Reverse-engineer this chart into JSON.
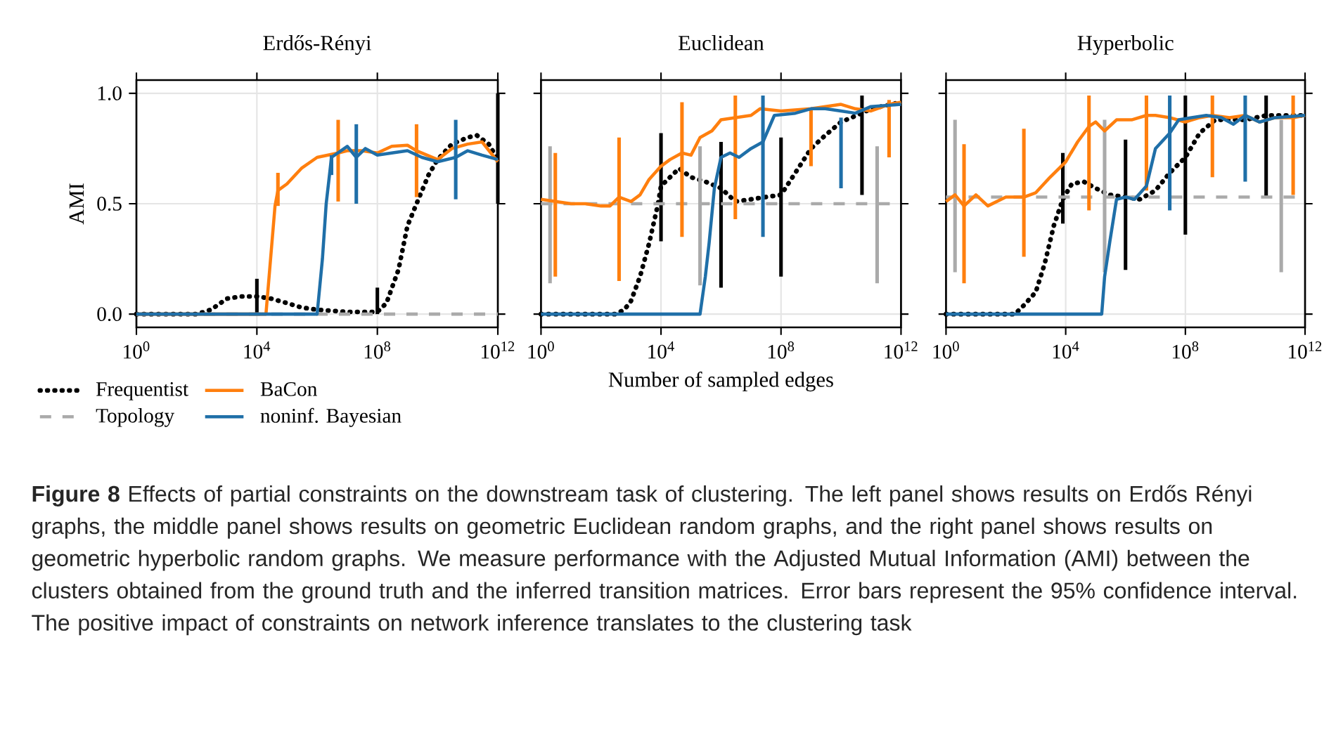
{
  "chart_data": [
    {
      "type": "line",
      "title": "Erdős-Rényi",
      "ylabel": "AMI",
      "log": "x",
      "grid": true,
      "legend": "bottom left",
      "xlim": [
        1,
        1000000000000.0
      ],
      "ylim": [
        -0.06,
        1.06
      ],
      "xticks": [
        {
          "value": 1,
          "label": "10$^{0}$"
        },
        {
          "value": 10000.0,
          "label": "10$^{4}$"
        },
        {
          "value": 100000000.0,
          "label": "10$^{8}$"
        },
        {
          "value": 1000000000000.0,
          "label": "10$^{12}$"
        }
      ],
      "yticks": [
        {
          "value": 0,
          "label": "0.0"
        },
        {
          "value": 0.5,
          "label": "0.5"
        },
        {
          "value": 1,
          "label": "1.0"
        }
      ],
      "series": [
        {
          "name": "Frequentist",
          "color": "#000000",
          "line_style": "dotted",
          "x": [
            1,
            100,
            300,
            1000.0,
            3000.0,
            10000.0,
            30000.0,
            100000.0,
            300000.0,
            1000000.0,
            10000000.0,
            100000000.0,
            200000000.0,
            500000000.0,
            1000000000.0,
            2000000000.0,
            5000000000.0,
            10000000000.0,
            30000000000.0,
            100000000000.0,
            200000000000.0,
            500000000000.0,
            1000000000000.0
          ],
          "values": [
            0,
            0,
            0.02,
            0.07,
            0.08,
            0.08,
            0.07,
            0.05,
            0.03,
            0.02,
            0.01,
            0.01,
            0.05,
            0.2,
            0.4,
            0.5,
            0.63,
            0.7,
            0.77,
            0.8,
            0.81,
            0.77,
            0.7
          ],
          "errors": [
            null,
            null,
            null,
            null,
            null,
            [
              0,
              0.16
            ],
            null,
            null,
            null,
            null,
            null,
            [
              0,
              0.12
            ],
            null,
            null,
            null,
            null,
            null,
            null,
            null,
            null,
            null,
            null,
            [
              0.5,
              1.0
            ]
          ]
        },
        {
          "name": "Topology",
          "color": "#aaaaaa",
          "line_style": "dashed",
          "x": [
            1,
            10000.0,
            100000000.0,
            1000000000000.0
          ],
          "values": [
            0,
            0,
            0,
            0
          ]
        },
        {
          "name": "BaCon",
          "color": "#ff7f0e",
          "line_style": "solid",
          "x": [
            1,
            1000.0,
            10000.0,
            20000.0,
            40000.0,
            50000.0,
            100000.0,
            300000.0,
            1000000.0,
            5000000.0,
            10000000.0,
            30000000.0,
            100000000.0,
            300000000.0,
            1000000000.0,
            2000000000.0,
            10000000000.0,
            30000000000.0,
            100000000000.0,
            300000000000.0,
            1000000000000.0
          ],
          "values": [
            0,
            0,
            0,
            0,
            0.49,
            0.56,
            0.59,
            0.66,
            0.71,
            0.73,
            0.74,
            0.74,
            0.73,
            0.76,
            0.765,
            0.74,
            0.7,
            0.75,
            0.77,
            0.78,
            0.69
          ],
          "errors": [
            null,
            null,
            null,
            null,
            null,
            [
              0.49,
              0.64
            ],
            null,
            null,
            null,
            [
              0.51,
              0.88
            ],
            null,
            null,
            null,
            null,
            null,
            [
              0.53,
              0.86
            ],
            null,
            null,
            null,
            null,
            null
          ]
        },
        {
          "name": "noninf. Bayesian",
          "color": "#1f6fa8",
          "line_style": "solid",
          "x": [
            1,
            1000.0,
            100000.0,
            1000000.0,
            1500000.0,
            2000000.0,
            3000000.0,
            10000000.0,
            20000000.0,
            40000000.0,
            100000000.0,
            300000000.0,
            1000000000.0,
            3000000000.0,
            10000000000.0,
            40000000000.0,
            100000000000.0,
            300000000000.0,
            1000000000000.0
          ],
          "values": [
            0,
            0,
            0,
            0,
            0.25,
            0.5,
            0.71,
            0.76,
            0.71,
            0.75,
            0.72,
            0.73,
            0.74,
            0.71,
            0.69,
            0.71,
            0.74,
            0.72,
            0.7
          ],
          "errors": [
            null,
            null,
            null,
            null,
            null,
            null,
            [
              0.63,
              0.72
            ],
            null,
            [
              0.5,
              0.86
            ],
            null,
            null,
            null,
            null,
            null,
            null,
            [
              0.52,
              0.88
            ],
            null,
            null,
            null
          ]
        }
      ],
      "annotations": [
        "**Figure 8** Effects of partial constraints on the downstream task of clustering. The left panel shows results on Erdős Rényi graphs, the middle panel shows results on geometric Euclidean random graphs, and the right panel shows results on geometric hyperbolic random graphs. We measure performance with the Adjusted Mutual Information (AMI) between the clusters obtained from the ground truth and the inferred transition matrices. Error bars represent the 95% confidence interval. The positive impact of constraints on network inference translates to the clustering task"
      ]
    },
    {
      "type": "line",
      "title": "Euclidean",
      "xlabel": "Number of sampled edges",
      "log": "x",
      "grid": true,
      "tick_labels": "x",
      "xlim": [
        1,
        1000000000000.0
      ],
      "ylim": [
        -0.06,
        1.06
      ],
      "xticks": [
        {
          "value": 1,
          "label": "10$^{0}$"
        },
        {
          "value": 10000.0,
          "label": "10$^{4}$"
        },
        {
          "value": 100000000.0,
          "label": "10$^{8}$"
        },
        {
          "value": 1000000000000.0,
          "label": "10$^{12}$"
        }
      ],
      "yticks": [
        0,
        0.5,
        1
      ],
      "series": [
        {
          "color": "#000000",
          "line_style": "dotted",
          "x": [
            1,
            300,
            600,
            1000.0,
            2000.0,
            4000.0,
            8000.0,
            10000.0,
            20000.0,
            40000.0,
            100000.0,
            300000.0,
            1000000.0,
            3000000.0,
            10000000.0,
            30000000.0,
            100000000.0,
            300000000.0,
            1000000000.0,
            3000000000.0,
            10000000000.0,
            50000000000.0,
            100000000000.0,
            1000000000000.0
          ],
          "values": [
            0,
            0,
            0.02,
            0.06,
            0.17,
            0.32,
            0.5,
            0.58,
            0.62,
            0.66,
            0.62,
            0.6,
            0.57,
            0.51,
            0.52,
            0.53,
            0.54,
            0.64,
            0.75,
            0.81,
            0.87,
            0.91,
            0.93,
            0.96
          ],
          "errors": [
            null,
            null,
            null,
            null,
            null,
            null,
            null,
            [
              0.33,
              0.82
            ],
            null,
            null,
            null,
            null,
            [
              0.12,
              0.78
            ],
            null,
            null,
            null,
            [
              0.17,
              0.8
            ],
            null,
            null,
            null,
            null,
            [
              0.54,
              0.99
            ],
            null,
            null
          ]
        },
        {
          "color": "#aaaaaa",
          "line_style": "dashed",
          "x": [
            1,
            2,
            200000.0,
            160000000000.0,
            1000000000000.0
          ],
          "values": [
            0.5,
            0.5,
            0.5,
            0.5,
            0.5
          ],
          "errors": [
            null,
            [
              0.14,
              0.76
            ],
            [
              0.13,
              0.76
            ],
            [
              0.14,
              0.76
            ],
            null
          ]
        },
        {
          "color": "#ff7f0e",
          "line_style": "solid",
          "x": [
            1,
            3,
            10,
            30,
            100,
            200,
            400,
            1000.0,
            2000.0,
            4000.0,
            10000.0,
            20000.0,
            50000.0,
            100000.0,
            200000.0,
            500000.0,
            1000000.0,
            3000000.0,
            10000000.0,
            20000000.0,
            100000000.0,
            1000000000.0,
            10000000000.0,
            30000000000.0,
            100000000000.0,
            400000000000.0,
            1000000000000.0
          ],
          "values": [
            0.52,
            0.51,
            0.5,
            0.5,
            0.49,
            0.49,
            0.53,
            0.51,
            0.54,
            0.61,
            0.67,
            0.7,
            0.73,
            0.72,
            0.8,
            0.83,
            0.88,
            0.89,
            0.9,
            0.93,
            0.92,
            0.93,
            0.95,
            0.93,
            0.92,
            0.95,
            0.96
          ],
          "errors": [
            null,
            [
              0.17,
              0.73
            ],
            null,
            null,
            null,
            null,
            [
              0.15,
              0.8
            ],
            null,
            null,
            null,
            null,
            null,
            [
              0.35,
              0.96
            ],
            null,
            null,
            null,
            null,
            [
              0.43,
              0.99
            ],
            null,
            null,
            null,
            [
              0.67,
              0.93
            ],
            null,
            null,
            null,
            [
              0.71,
              0.97
            ],
            null
          ]
        },
        {
          "color": "#1f6fa8",
          "line_style": "solid",
          "x": [
            1,
            1000.0,
            100000.0,
            200000.0,
            300000.0,
            400000.0,
            600000.0,
            1000000.0,
            2000000.0,
            4000000.0,
            10000000.0,
            25000000.0,
            60000000.0,
            300000000.0,
            1000000000.0,
            3000000000.0,
            10000000000.0,
            30000000000.0,
            100000000000.0,
            1000000000000.0
          ],
          "values": [
            0,
            0,
            0,
            0,
            0.17,
            0.32,
            0.57,
            0.71,
            0.73,
            0.71,
            0.75,
            0.78,
            0.9,
            0.91,
            0.93,
            0.93,
            0.92,
            0.91,
            0.94,
            0.95
          ],
          "errors": [
            null,
            null,
            null,
            null,
            null,
            null,
            null,
            null,
            null,
            null,
            null,
            [
              0.35,
              0.99
            ],
            null,
            null,
            null,
            null,
            [
              0.57,
              0.89
            ],
            null,
            null,
            null
          ]
        }
      ]
    },
    {
      "type": "line",
      "title": "Hyperbolic",
      "log": "x",
      "grid": true,
      "tick_labels": "x",
      "xlim": [
        1,
        1000000000000.0
      ],
      "ylim": [
        -0.06,
        1.06
      ],
      "xticks": [
        {
          "value": 1,
          "label": "10$^{0}$"
        },
        {
          "value": 10000.0,
          "label": "10$^{4}$"
        },
        {
          "value": 100000000.0,
          "label": "10$^{8}$"
        },
        {
          "value": 1000000000000.0,
          "label": "10$^{12}$"
        }
      ],
      "yticks": [
        0,
        0.5,
        1
      ],
      "series": [
        {
          "color": "#000000",
          "line_style": "dotted",
          "x": [
            1,
            200,
            400,
            1000.0,
            2000.0,
            4000.0,
            8000.0,
            16000.0,
            40000.0,
            100000.0,
            300000.0,
            1000000.0,
            3000000.0,
            10000000.0,
            30000000.0,
            100000000.0,
            300000000.0,
            1000000000.0,
            10000000000.0,
            50000000000.0,
            1000000000000.0
          ],
          "values": [
            0,
            0,
            0.04,
            0.1,
            0.23,
            0.4,
            0.52,
            0.59,
            0.6,
            0.57,
            0.54,
            0.53,
            0.52,
            0.56,
            0.64,
            0.71,
            0.82,
            0.88,
            0.88,
            0.9,
            0.9
          ],
          "errors": [
            null,
            null,
            null,
            null,
            null,
            null,
            [
              0.41,
              0.73
            ],
            null,
            null,
            null,
            null,
            [
              0.2,
              0.79
            ],
            null,
            null,
            null,
            [
              0.36,
              0.99
            ],
            null,
            null,
            null,
            [
              0.53,
              0.99
            ],
            null
          ]
        },
        {
          "color": "#aaaaaa",
          "line_style": "dashed",
          "x": [
            1,
            2,
            200000.0,
            160000000000.0,
            1000000000000.0
          ],
          "values": [
            0.53,
            0.53,
            0.53,
            0.53,
            0.53
          ],
          "errors": [
            null,
            [
              0.19,
              0.88
            ],
            [
              0.19,
              0.88
            ],
            [
              0.19,
              0.88
            ],
            null
          ]
        },
        {
          "color": "#ff7f0e",
          "line_style": "solid",
          "x": [
            1,
            2,
            4,
            10,
            25,
            100,
            400,
            1000.0,
            3000.0,
            10000.0,
            25000.0,
            60000.0,
            100000.0,
            200000.0,
            500000.0,
            1600000.0,
            5000000.0,
            10000000.0,
            30000000.0,
            100000000.0,
            300000000.0,
            800000000.0,
            3000000000.0,
            10000000000.0,
            30000000000.0,
            100000000000.0,
            400000000000.0,
            1000000000000.0
          ],
          "values": [
            0.51,
            0.54,
            0.49,
            0.54,
            0.49,
            0.53,
            0.53,
            0.55,
            0.62,
            0.69,
            0.78,
            0.85,
            0.87,
            0.83,
            0.88,
            0.88,
            0.9,
            0.9,
            0.89,
            0.87,
            0.89,
            0.9,
            0.89,
            0.9,
            0.87,
            0.89,
            0.89,
            0.9
          ],
          "errors": [
            null,
            null,
            [
              0.14,
              0.77
            ],
            null,
            null,
            null,
            [
              0.26,
              0.84
            ],
            null,
            null,
            null,
            null,
            [
              0.47,
              0.99
            ],
            null,
            null,
            null,
            null,
            [
              0.56,
              0.99
            ],
            null,
            null,
            null,
            null,
            [
              0.62,
              0.99
            ],
            null,
            null,
            null,
            null,
            [
              0.54,
              0.99
            ],
            null
          ]
        },
        {
          "color": "#1f6fa8",
          "line_style": "solid",
          "x": [
            1,
            1000.0,
            100000.0,
            160000.0,
            200000.0,
            300000.0,
            500000.0,
            1000000.0,
            2000000.0,
            5000000.0,
            10000000.0,
            30000000.0,
            60000000.0,
            160000000.0,
            500000000.0,
            1600000000.0,
            4000000000.0,
            10000000000.0,
            30000000000.0,
            100000000000.0,
            1000000000000.0
          ],
          "values": [
            0,
            0,
            0,
            0,
            0.17,
            0.33,
            0.52,
            0.53,
            0.52,
            0.58,
            0.75,
            0.82,
            0.88,
            0.89,
            0.9,
            0.89,
            0.86,
            0.9,
            0.87,
            0.89,
            0.9
          ],
          "errors": [
            null,
            null,
            null,
            null,
            null,
            null,
            null,
            null,
            null,
            null,
            null,
            [
              0.47,
              0.99
            ],
            null,
            null,
            null,
            null,
            null,
            [
              0.6,
              0.99
            ],
            null,
            null,
            null
          ]
        }
      ]
    }
  ]
}
